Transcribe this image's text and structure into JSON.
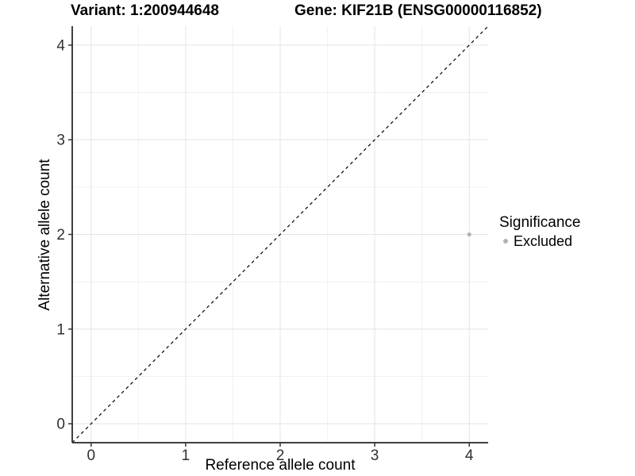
{
  "header": {
    "variant_title": "Variant: 1:200944648",
    "gene_title": "Gene: KIF21B (ENSG00000116852)"
  },
  "axes": {
    "x_label": "Reference allele count",
    "y_label": "Alternative allele count"
  },
  "legend": {
    "title": "Significance",
    "items": [
      {
        "label": "Excluded",
        "color": "#b3b3b3"
      }
    ]
  },
  "chart_data": {
    "type": "scatter",
    "title_left": "Variant: 1:200944648",
    "title_right": "Gene: KIF21B (ENSG00000116852)",
    "xlabel": "Reference allele count",
    "ylabel": "Alternative allele count",
    "xlim": [
      -0.2,
      4.2
    ],
    "ylim": [
      -0.2,
      4.2
    ],
    "x_ticks": [
      0,
      1,
      2,
      3,
      4
    ],
    "y_ticks": [
      0,
      1,
      2,
      3,
      4
    ],
    "grid": "major+minor",
    "minor_step": 0.5,
    "identity_line": {
      "style": "dashed",
      "from": [
        -0.2,
        -0.2
      ],
      "to": [
        4.2,
        4.2
      ],
      "color": "#000000"
    },
    "series": [
      {
        "name": "Excluded",
        "color": "#b3b3b3",
        "points": [
          {
            "x": 4,
            "y": 2
          }
        ]
      }
    ],
    "legend_title": "Significance",
    "legend_position": "right",
    "colors": {
      "point": "#b3b3b3",
      "grid_major": "#e4e4e4",
      "grid_minor": "#f1f1f1",
      "axis_line": "#404040",
      "tick_mark": "#333333",
      "tick_label": "#303030",
      "identity_line": "#000000",
      "background": "#ffffff"
    }
  }
}
